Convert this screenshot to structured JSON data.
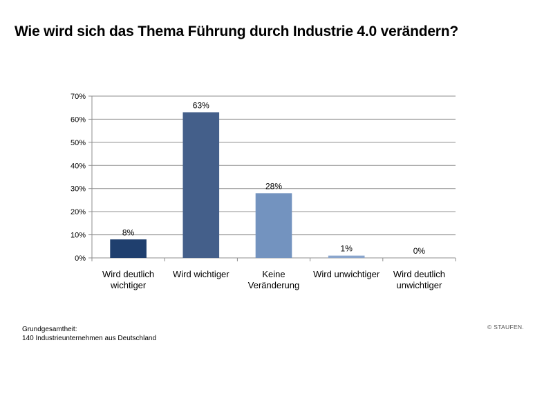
{
  "title": "Wie wird sich das Thema Führung durch Industrie 4.0 verändern?",
  "footnote": {
    "line1": "Grundgesamtheit:",
    "line2": "140 Industrieunternehmen aus Deutschland"
  },
  "copyright": "© STAUFEN.",
  "chart_data": {
    "type": "bar",
    "title": "Wie wird sich das Thema Führung durch Industrie 4.0 verändern?",
    "xlabel": "",
    "ylabel": "",
    "categories": [
      [
        "Wird deutlich",
        "wichtiger"
      ],
      [
        "Wird wichtiger"
      ],
      [
        "Keine",
        "Veränderung"
      ],
      [
        "Wird unwichtiger"
      ],
      [
        "Wird deutlich",
        "unwichtiger"
      ]
    ],
    "values": [
      8,
      63,
      28,
      1,
      0
    ],
    "value_labels": [
      "8%",
      "63%",
      "28%",
      "1%",
      "0%"
    ],
    "bar_colors": [
      "#1f3f6e",
      "#445f8a",
      "#7393bf",
      "#8aa5cc",
      "#9bb4d6"
    ],
    "yticks": [
      0,
      10,
      20,
      30,
      40,
      50,
      60,
      70
    ],
    "ytick_labels": [
      "0%",
      "10%",
      "20%",
      "30%",
      "40%",
      "50%",
      "60%",
      "70%"
    ],
    "ylim": [
      0,
      70
    ],
    "grid": true,
    "legend": "none"
  }
}
